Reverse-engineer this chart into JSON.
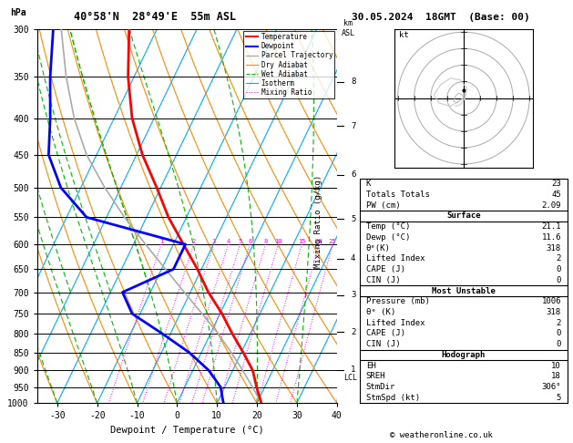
{
  "title_left": "40°58'N  28°49'E  55m ASL",
  "title_right": "30.05.2024  18GMT  (Base: 00)",
  "xlabel": "Dewpoint / Temperature (°C)",
  "pressure_levels": [
    300,
    350,
    400,
    450,
    500,
    550,
    600,
    650,
    700,
    750,
    800,
    850,
    900,
    950,
    1000
  ],
  "sounding_pressure": [
    1000,
    950,
    900,
    850,
    800,
    750,
    700,
    650,
    600,
    550,
    500,
    450,
    400,
    350,
    300
  ],
  "sounding_temp": [
    21.1,
    18.0,
    15.0,
    10.5,
    5.5,
    0.5,
    -5.5,
    -11.0,
    -17.5,
    -24.5,
    -31.0,
    -38.5,
    -45.5,
    -51.5,
    -57.0
  ],
  "sounding_dewp": [
    11.6,
    9.0,
    4.0,
    -3.0,
    -12.0,
    -22.0,
    -27.0,
    -17.0,
    -17.0,
    -45.0,
    -55.0,
    -62.0,
    -66.0,
    -71.0,
    -76.0
  ],
  "parcel_temp": [
    21.1,
    17.0,
    12.5,
    7.5,
    2.0,
    -4.5,
    -11.5,
    -19.0,
    -27.0,
    -35.5,
    -44.0,
    -52.5,
    -60.0,
    -67.0,
    -74.0
  ],
  "xmin": -35,
  "xmax": 40,
  "pmin": 300,
  "pmax": 1000,
  "skew_factor": 45,
  "background_color": "#ffffff",
  "mixing_ratios": [
    1,
    2,
    3,
    4,
    5,
    6,
    8,
    10,
    15,
    20,
    25
  ],
  "legend_entries": [
    {
      "label": "Temperature",
      "color": "#ff0000",
      "linestyle": "-",
      "lw": 1.5
    },
    {
      "label": "Dewpoint",
      "color": "#0000ff",
      "linestyle": "-",
      "lw": 1.5
    },
    {
      "label": "Parcel Trajectory",
      "color": "#aaaaaa",
      "linestyle": "-",
      "lw": 1.0
    },
    {
      "label": "Dry Adiabat",
      "color": "#ff8800",
      "linestyle": "-",
      "lw": 0.8
    },
    {
      "label": "Wet Adiabat",
      "color": "#00bb00",
      "linestyle": "--",
      "lw": 0.8
    },
    {
      "label": "Isotherm",
      "color": "#00aaff",
      "linestyle": "-",
      "lw": 0.8
    },
    {
      "label": "Mixing Ratio",
      "color": "#ff00ff",
      "linestyle": ":",
      "lw": 0.8
    }
  ],
  "km_asl_ticks": [
    1,
    2,
    3,
    4,
    5,
    6,
    7,
    8
  ],
  "km_asl_pressures": [
    898,
    796,
    706,
    628,
    553,
    480,
    410,
    356
  ],
  "lcl_pressure": 923,
  "hodograph_circles": [
    10,
    20,
    30,
    40
  ],
  "stats": {
    "K": 23,
    "Totals_Totals": 45,
    "PW_cm": "2.09",
    "Surface_Temp": "21.1",
    "Surface_Dewp": "11.6",
    "theta_e_K": 318,
    "Lifted_Index": 2,
    "CAPE_J": 0,
    "CIN_J": 0,
    "MU_Pressure_mb": 1006,
    "MU_theta_e_K": 318,
    "MU_Lifted_Index": 2,
    "MU_CAPE_J": 0,
    "MU_CIN_J": 0,
    "EH": 10,
    "SREH": 18,
    "StmDir": "306°",
    "StmSpd_kt": 5
  }
}
